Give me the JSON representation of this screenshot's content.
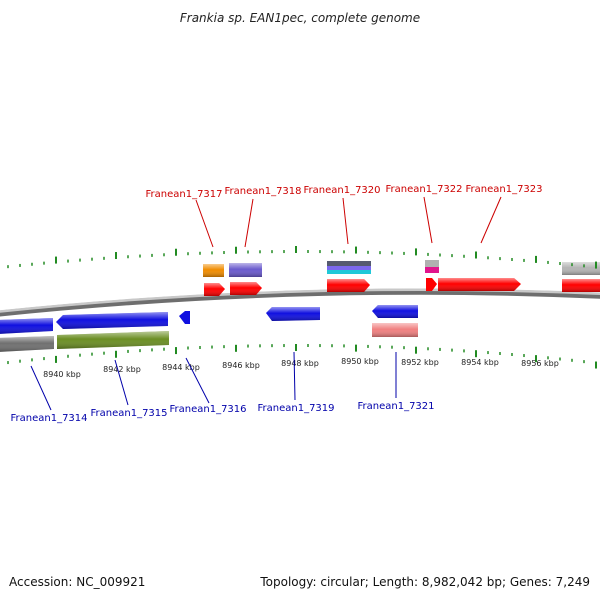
{
  "title": "Frankia sp. EAN1pec, complete genome",
  "footer": {
    "accession": "Accession: NC_009921",
    "topology": "Topology: circular; Length: 8,982,042 bp; Genes: 7,249"
  },
  "colors": {
    "forward_label": "#cc0000",
    "reverse_label": "#0000aa",
    "tick": "#228b22",
    "backbone": "#8c8c8c"
  },
  "ticks": [
    {
      "label": "8940 kbp"
    },
    {
      "label": "8942 kbp"
    },
    {
      "label": "8944 kbp"
    },
    {
      "label": "8946 kbp"
    },
    {
      "label": "8948 kbp"
    },
    {
      "label": "8950 kbp"
    },
    {
      "label": "8952 kbp"
    },
    {
      "label": "8954 kbp"
    },
    {
      "label": "8956 kbp"
    }
  ],
  "forward_labels": [
    "Franean1_7317",
    "Franean1_7318",
    "Franean1_7320",
    "Franean1_7322",
    "Franean1_7323"
  ],
  "reverse_labels": [
    "Franean1_7314",
    "Franean1_7315",
    "Franean1_7316",
    "Franean1_7319",
    "Franean1_7321"
  ]
}
